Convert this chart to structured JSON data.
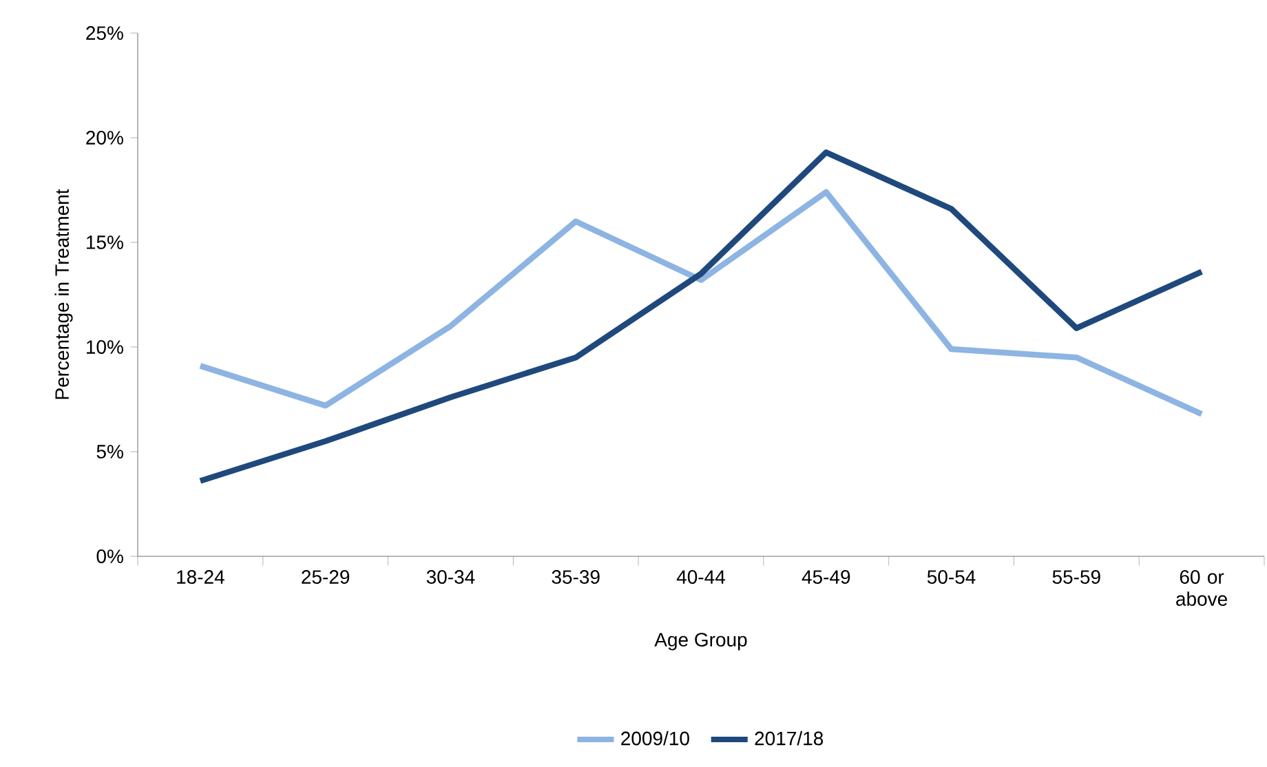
{
  "chart_data": {
    "type": "line",
    "categories": [
      "18-24",
      "25-29",
      "30-34",
      "35-39",
      "40-44",
      "45-49",
      "50-54",
      "55-59",
      "60 or above"
    ],
    "xlabel": "Age Group",
    "ylabel": "Percentage in Treatment",
    "series": [
      {
        "name": "2009/10",
        "color": "#8db4e2",
        "values": [
          9.1,
          7.2,
          11.0,
          16.0,
          13.2,
          17.4,
          9.9,
          9.5,
          6.8
        ]
      },
      {
        "name": "2017/18",
        "color": "#1f497d",
        "values": [
          3.6,
          5.5,
          7.6,
          9.5,
          13.5,
          19.3,
          16.6,
          10.9,
          13.6
        ]
      }
    ],
    "ylim": [
      0,
      25
    ],
    "yticks": [
      {
        "value": 0,
        "label": "0%"
      },
      {
        "value": 5,
        "label": "5%"
      },
      {
        "value": 10,
        "label": "10%"
      },
      {
        "value": 15,
        "label": "15%"
      },
      {
        "value": 20,
        "label": "20%"
      },
      {
        "value": 25,
        "label": "25%"
      }
    ],
    "grid": false,
    "legend": "bottom",
    "marker": "none",
    "line_style": "solid"
  }
}
